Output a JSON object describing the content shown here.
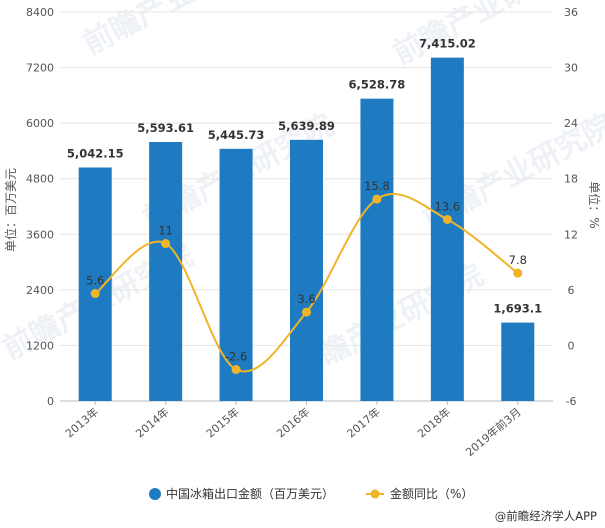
{
  "chart_data": {
    "type": "bar",
    "categories": [
      "2013年",
      "2014年",
      "2015年",
      "2016年",
      "2017年",
      "2018年",
      "2019年前3月"
    ],
    "series": [
      {
        "name": "中国冰箱出口金额（百万美元）",
        "type": "bar",
        "axis": "left",
        "values": [
          5042.15,
          5593.61,
          5445.73,
          5639.89,
          6528.78,
          7415.02,
          1693.1
        ],
        "labels": [
          "5,042.15",
          "5,593.61",
          "5,445.73",
          "5,639.89",
          "6,528.78",
          "7,415.02",
          "1,693.1"
        ],
        "color": "#1f7bc1"
      },
      {
        "name": "金额同比（%）",
        "type": "line",
        "axis": "right",
        "values": [
          5.6,
          11,
          -2.6,
          3.6,
          15.8,
          13.6,
          7.8
        ],
        "labels": [
          "5.6",
          "11",
          "-2.6",
          "3.6",
          "15.8",
          "13.6",
          "7.8"
        ],
        "color": "#f0b429"
      }
    ],
    "ylabel": "单位：百万美元",
    "ylabel_right": "单位：%",
    "ylim": [
      0,
      8400
    ],
    "yticks": [
      0,
      1200,
      2400,
      3600,
      4800,
      6000,
      7200,
      8400
    ],
    "ylim_right": [
      -6,
      36
    ],
    "yticks_right": [
      -6,
      0,
      6,
      12,
      18,
      24,
      30,
      36
    ],
    "grid": true,
    "legend_position": "bottom"
  },
  "footer": {
    "brand": "@前瞻经济学人APP"
  },
  "watermark": {
    "text": "前瞻产业研究院"
  }
}
